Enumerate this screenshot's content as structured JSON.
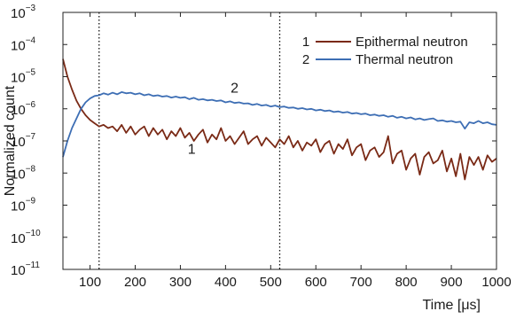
{
  "chart_data": {
    "type": "line",
    "title": "",
    "xlabel": "Time [μs]",
    "ylabel": "Normalized count",
    "xlim": [
      40,
      1000
    ],
    "ylim_log10": [
      -11,
      -3
    ],
    "y_scale": "log",
    "grid": false,
    "legend_position": "top-right",
    "x_ticks": [
      "100",
      "200",
      "300",
      "400",
      "500",
      "600",
      "700",
      "800",
      "900",
      "1000"
    ],
    "y_ticks": [
      {
        "base": "10",
        "exp": "−3"
      },
      {
        "base": "10",
        "exp": "−4"
      },
      {
        "base": "10",
        "exp": "−5"
      },
      {
        "base": "10",
        "exp": "−6"
      },
      {
        "base": "10",
        "exp": "−7"
      },
      {
        "base": "10",
        "exp": "−8"
      },
      {
        "base": "10",
        "exp": "−9"
      },
      {
        "base": "10",
        "exp": "−10"
      },
      {
        "base": "10",
        "exp": "−11"
      }
    ],
    "vertical_lines": [
      120,
      520
    ],
    "series": [
      {
        "id": "1",
        "name": "Epithermal neutron",
        "color": "#7a2a16",
        "x": [
          40,
          50,
          60,
          70,
          80,
          90,
          100,
          110,
          120,
          130,
          140,
          150,
          160,
          170,
          180,
          190,
          200,
          210,
          220,
          230,
          240,
          250,
          260,
          270,
          280,
          290,
          300,
          310,
          320,
          330,
          340,
          350,
          360,
          370,
          380,
          390,
          400,
          410,
          420,
          430,
          440,
          450,
          460,
          470,
          480,
          490,
          500,
          510,
          520,
          530,
          540,
          550,
          560,
          570,
          580,
          590,
          600,
          610,
          620,
          630,
          640,
          650,
          660,
          670,
          680,
          690,
          700,
          710,
          720,
          730,
          740,
          750,
          760,
          770,
          780,
          790,
          800,
          810,
          820,
          830,
          840,
          850,
          860,
          870,
          880,
          890,
          900,
          910,
          920,
          930,
          940,
          950,
          960,
          970,
          980,
          990,
          1000
        ],
        "log10_y": [
          -4.45,
          -5.0,
          -5.4,
          -5.75,
          -6.0,
          -6.2,
          -6.35,
          -6.45,
          -6.55,
          -6.5,
          -6.6,
          -6.55,
          -6.7,
          -6.5,
          -6.75,
          -6.55,
          -6.8,
          -6.65,
          -6.55,
          -6.85,
          -6.6,
          -6.8,
          -6.65,
          -6.95,
          -6.7,
          -6.85,
          -6.6,
          -6.9,
          -6.75,
          -7.0,
          -6.8,
          -6.65,
          -7.05,
          -6.8,
          -6.95,
          -6.6,
          -7.0,
          -6.85,
          -7.1,
          -6.9,
          -6.7,
          -7.1,
          -6.95,
          -6.85,
          -7.15,
          -6.9,
          -7.05,
          -7.2,
          -6.95,
          -7.1,
          -6.85,
          -7.2,
          -7.0,
          -7.3,
          -7.05,
          -7.15,
          -6.95,
          -7.35,
          -7.1,
          -7.0,
          -7.4,
          -7.1,
          -7.25,
          -6.95,
          -7.45,
          -7.2,
          -7.1,
          -7.6,
          -7.3,
          -7.2,
          -7.5,
          -7.35,
          -6.85,
          -7.7,
          -7.4,
          -7.3,
          -7.9,
          -7.55,
          -7.4,
          -8.05,
          -7.5,
          -7.35,
          -7.7,
          -7.6,
          -7.3,
          -7.95,
          -7.55,
          -8.1,
          -7.4,
          -8.2,
          -7.5,
          -7.75,
          -7.5,
          -7.9,
          -7.45,
          -7.65,
          -7.55
        ]
      },
      {
        "id": "2",
        "name": "Thermal neutron",
        "color": "#3d6eb4",
        "x": [
          40,
          50,
          60,
          70,
          80,
          90,
          100,
          110,
          120,
          130,
          140,
          150,
          160,
          170,
          180,
          190,
          200,
          210,
          220,
          230,
          240,
          250,
          260,
          270,
          280,
          290,
          300,
          310,
          320,
          330,
          340,
          350,
          360,
          370,
          380,
          390,
          400,
          410,
          420,
          430,
          440,
          450,
          460,
          470,
          480,
          490,
          500,
          510,
          520,
          530,
          540,
          550,
          560,
          570,
          580,
          590,
          600,
          610,
          620,
          630,
          640,
          650,
          660,
          670,
          680,
          690,
          700,
          710,
          720,
          730,
          740,
          750,
          760,
          770,
          780,
          790,
          800,
          810,
          820,
          830,
          840,
          850,
          860,
          870,
          880,
          890,
          900,
          910,
          920,
          930,
          940,
          950,
          960,
          970,
          980,
          990,
          1000
        ],
        "log10_y": [
          -7.5,
          -7.0,
          -6.6,
          -6.3,
          -6.0,
          -5.8,
          -5.68,
          -5.6,
          -5.58,
          -5.52,
          -5.56,
          -5.5,
          -5.55,
          -5.48,
          -5.52,
          -5.5,
          -5.55,
          -5.52,
          -5.58,
          -5.55,
          -5.6,
          -5.58,
          -5.62,
          -5.6,
          -5.65,
          -5.62,
          -5.66,
          -5.64,
          -5.7,
          -5.66,
          -5.72,
          -5.7,
          -5.74,
          -5.72,
          -5.76,
          -5.74,
          -5.8,
          -5.77,
          -5.82,
          -5.8,
          -5.84,
          -5.83,
          -5.88,
          -5.85,
          -5.9,
          -5.88,
          -5.93,
          -5.9,
          -5.95,
          -5.93,
          -5.97,
          -5.96,
          -6.0,
          -5.98,
          -6.02,
          -6.0,
          -6.05,
          -6.03,
          -6.07,
          -6.05,
          -6.1,
          -6.08,
          -6.12,
          -6.1,
          -6.15,
          -6.13,
          -6.17,
          -6.15,
          -6.2,
          -6.18,
          -6.22,
          -6.2,
          -6.25,
          -6.22,
          -6.28,
          -6.25,
          -6.3,
          -6.27,
          -6.33,
          -6.3,
          -6.35,
          -6.32,
          -6.3,
          -6.38,
          -6.36,
          -6.4,
          -6.38,
          -6.42,
          -6.4,
          -6.62,
          -6.42,
          -6.45,
          -6.38,
          -6.45,
          -6.42,
          -6.48,
          -6.5
        ]
      }
    ],
    "curve_labels": [
      {
        "text": "1",
        "x": 325,
        "log10_y": -7.4
      },
      {
        "text": "2",
        "x": 420,
        "log10_y": -5.5
      }
    ]
  }
}
